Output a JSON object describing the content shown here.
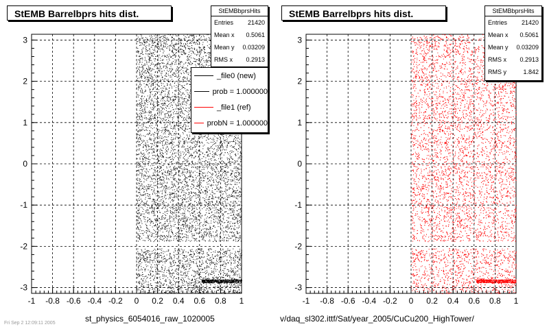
{
  "chart_data": [
    {
      "type": "scatter",
      "title": "StEMB Barrelbprs hits dist.",
      "xlim": [
        -1,
        1
      ],
      "ylim": [
        -3.14,
        3.14
      ],
      "xticks": [
        "-1",
        "-0.8",
        "-0.6",
        "-0.4",
        "-0.2",
        "0",
        "0.2",
        "0.4",
        "0.6",
        "0.8",
        "1"
      ],
      "yticks": [
        "-3",
        "-2",
        "-1",
        "0",
        "1",
        "2",
        "3"
      ],
      "grid": true,
      "series": [
        {
          "name": "_file0 (new)",
          "color": "#000000",
          "x_range": [
            0,
            1
          ],
          "y_range": [
            -3.14,
            3.14
          ]
        }
      ],
      "stats": {
        "name": "StEMBbprsHits",
        "rows": [
          {
            "label": "Entries",
            "value": "21420"
          },
          {
            "label": "Mean x",
            "value": "0.5061"
          },
          {
            "label": "Mean y",
            "value": "0.03209"
          },
          {
            "label": "RMS x",
            "value": "0.2913"
          }
        ]
      },
      "legend": [
        {
          "label": "_file0 (new)",
          "color": "#000000"
        },
        {
          "label": "prob = 1.000000",
          "color": "#000000"
        },
        {
          "label": "_file1 (ref)",
          "color": "#ff0000"
        },
        {
          "label": "probN = 1.000000",
          "color": "#ff0000"
        }
      ],
      "footer": "st_physics_6054016_raw_1020005"
    },
    {
      "type": "scatter",
      "title": "StEMB Barrelbprs hits dist.",
      "xlim": [
        -1,
        1
      ],
      "ylim": [
        -3.14,
        3.14
      ],
      "xticks": [
        "-1",
        "-0.8",
        "-0.6",
        "-0.4",
        "-0.2",
        "0",
        "0.2",
        "0.4",
        "0.6",
        "0.8",
        "1"
      ],
      "yticks": [
        "-3",
        "-2",
        "-1",
        "0",
        "1",
        "2",
        "3"
      ],
      "grid": true,
      "series": [
        {
          "name": "_file1 (ref)",
          "color": "#ff0000",
          "x_range": [
            0,
            1
          ],
          "y_range": [
            -3.14,
            3.14
          ]
        }
      ],
      "stats": {
        "name": "StEMBbprsHits",
        "rows": [
          {
            "label": "Entries",
            "value": "21420"
          },
          {
            "label": "Mean x",
            "value": "0.5061"
          },
          {
            "label": "Mean y",
            "value": "0.03209"
          },
          {
            "label": "RMS x",
            "value": "0.2913"
          },
          {
            "label": "RMS y",
            "value": "1.842"
          }
        ]
      },
      "footer": "v/daq_sl302.ittf/Sat/year_2005/CuCu200_HighTower/"
    }
  ],
  "timestamp": "Fri Sep  2 12:09:11 2005"
}
